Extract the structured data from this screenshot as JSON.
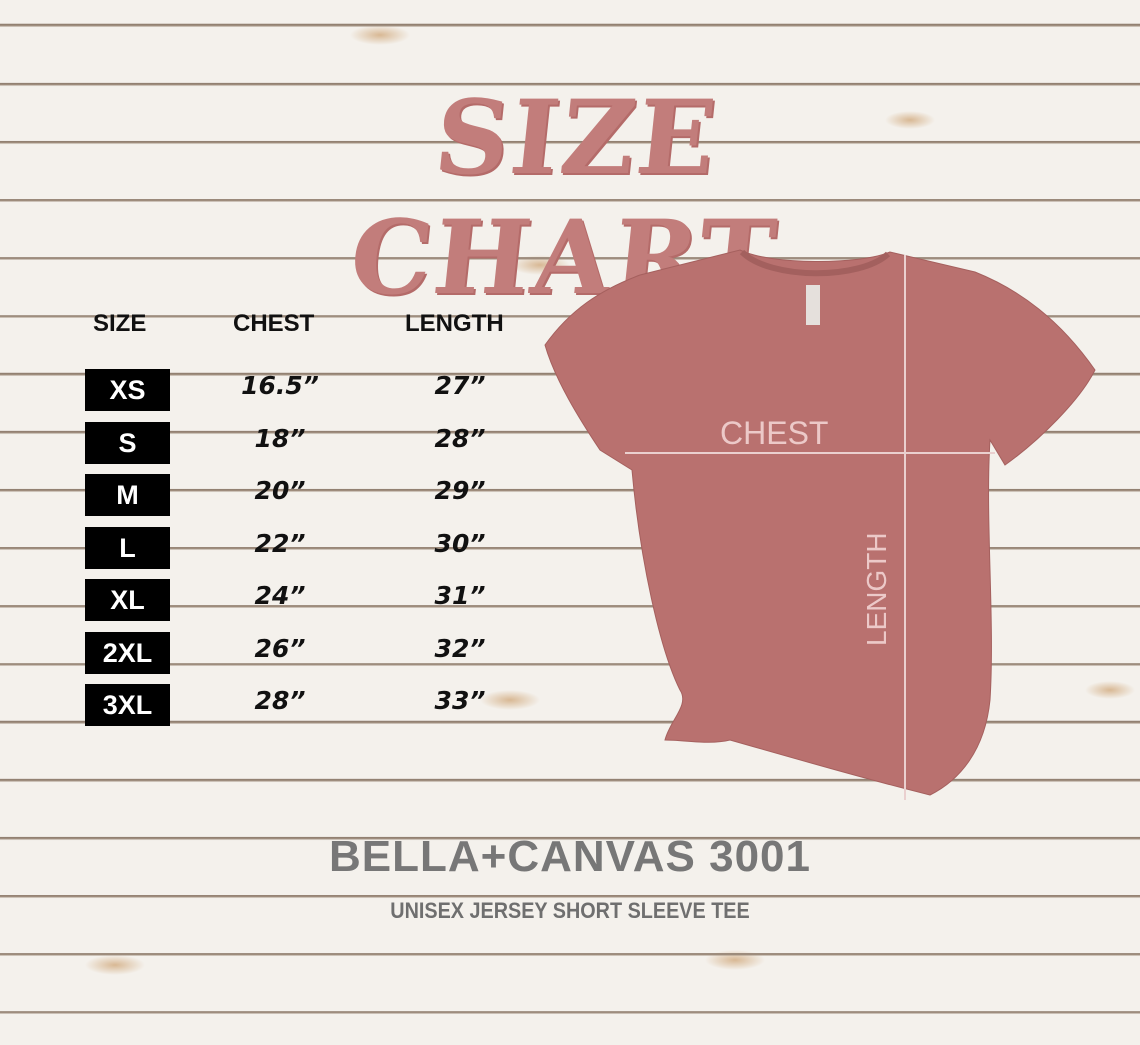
{
  "title": "SIZE CHART",
  "table": {
    "headers": [
      "SIZE",
      "CHEST",
      "LENGTH"
    ],
    "rows": [
      {
        "size": "XS",
        "chest": "16.5”",
        "length": "27”"
      },
      {
        "size": "S",
        "chest": "18”",
        "length": "28”"
      },
      {
        "size": "M",
        "chest": "20”",
        "length": "29”"
      },
      {
        "size": "L",
        "chest": "22”",
        "length": "30”"
      },
      {
        "size": "XL",
        "chest": "24”",
        "length": "31”"
      },
      {
        "size": "2XL",
        "chest": "26”",
        "length": "32”"
      },
      {
        "size": "3XL",
        "chest": "28”",
        "length": "33”"
      }
    ]
  },
  "diagram": {
    "chest_label": "CHEST",
    "length_label": "LENGTH",
    "shirt_color": "#b9716f",
    "title_color": "#c27d7b"
  },
  "brand": "BELLA+CANVAS 3001",
  "subtitle": "UNISEX JERSEY SHORT SLEEVE TEE"
}
